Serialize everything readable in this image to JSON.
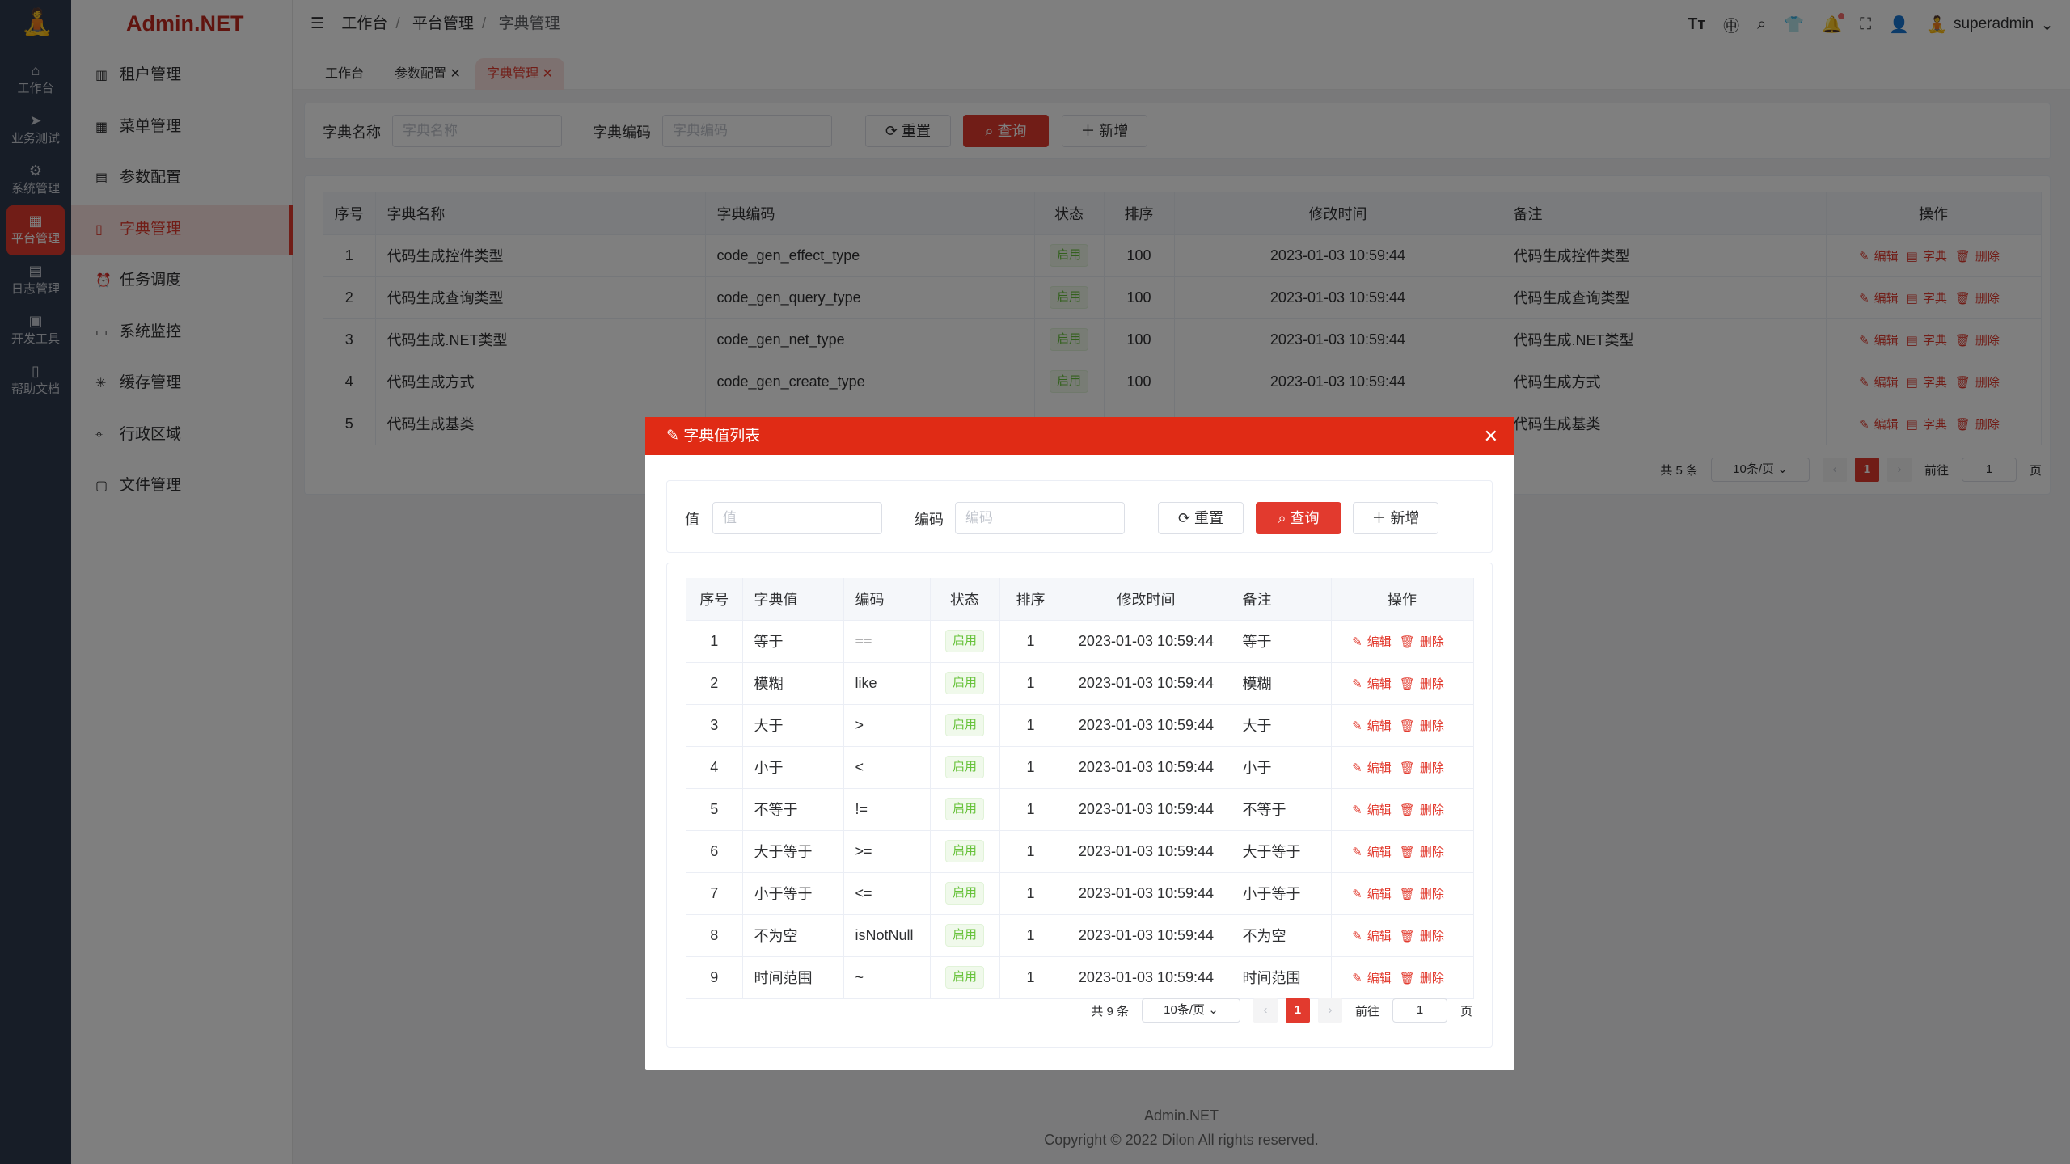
{
  "rail": {
    "items": [
      {
        "label": "工作台",
        "icon": "home-icon"
      },
      {
        "label": "业务测试",
        "icon": "send-icon"
      },
      {
        "label": "系统管理",
        "icon": "gear-icon"
      },
      {
        "label": "平台管理",
        "icon": "grid-icon",
        "active": true
      },
      {
        "label": "日志管理",
        "icon": "document-icon"
      },
      {
        "label": "开发工具",
        "icon": "cpu-icon"
      },
      {
        "label": "帮助文档",
        "icon": "book-icon"
      }
    ]
  },
  "brand": "Admin.NET",
  "menu": {
    "items": [
      {
        "label": "租户管理",
        "icon": "building-icon"
      },
      {
        "label": "菜单管理",
        "icon": "grid-icon"
      },
      {
        "label": "参数配置",
        "icon": "document-icon"
      },
      {
        "label": "字典管理",
        "icon": "book-icon",
        "active": true
      },
      {
        "label": "任务调度",
        "icon": "alarm-clock-icon"
      },
      {
        "label": "系统监控",
        "icon": "monitor-icon"
      },
      {
        "label": "缓存管理",
        "icon": "loading-icon"
      },
      {
        "label": "行政区域",
        "icon": "location-icon"
      },
      {
        "label": "文件管理",
        "icon": "file-icon"
      }
    ]
  },
  "breadcrumb": [
    "工作台",
    "平台管理",
    "字典管理"
  ],
  "user": {
    "name": "superadmin"
  },
  "tabs": [
    {
      "label": "工作台"
    },
    {
      "label": "参数配置",
      "closable": true
    },
    {
      "label": "字典管理",
      "closable": true,
      "active": true
    }
  ],
  "search": {
    "name_label": "字典名称",
    "name_placeholder": "字典名称",
    "code_label": "字典编码",
    "code_placeholder": "字典编码",
    "reset": "重置",
    "query": "查询",
    "add": "新增"
  },
  "table": {
    "headers": [
      "序号",
      "字典名称",
      "字典编码",
      "状态",
      "排序",
      "修改时间",
      "备注",
      "操作"
    ],
    "rows": [
      [
        "1",
        "代码生成控件类型",
        "code_gen_effect_type",
        "启用",
        "100",
        "2023-01-03 10:59:44",
        "代码生成控件类型"
      ],
      [
        "2",
        "代码生成查询类型",
        "code_gen_query_type",
        "启用",
        "100",
        "2023-01-03 10:59:44",
        "代码生成查询类型"
      ],
      [
        "3",
        "代码生成.NET类型",
        "code_gen_net_type",
        "启用",
        "100",
        "2023-01-03 10:59:44",
        "代码生成.NET类型"
      ],
      [
        "4",
        "代码生成方式",
        "code_gen_create_type",
        "启用",
        "100",
        "2023-01-03 10:59:44",
        "代码生成方式"
      ],
      [
        "5",
        "代码生成基类",
        "",
        "",
        "",
        "",
        "代码生成基类"
      ]
    ],
    "actions": [
      "编辑",
      "字典",
      "删除"
    ],
    "pager": {
      "total": "共 5 条",
      "size": "10条/页",
      "page": "1",
      "goto": "前往",
      "goto_value": "1",
      "suffix": "页"
    }
  },
  "dialog": {
    "title": "字典值列表",
    "value_label": "值",
    "value_placeholder": "值",
    "code_label": "编码",
    "code_placeholder": "编码",
    "reset": "重置",
    "query": "查询",
    "add": "新增",
    "headers": [
      "序号",
      "字典值",
      "编码",
      "状态",
      "排序",
      "修改时间",
      "备注",
      "操作"
    ],
    "rows": [
      [
        "1",
        "等于",
        "==",
        "启用",
        "1",
        "2023-01-03 10:59:44",
        "等于"
      ],
      [
        "2",
        "模糊",
        "like",
        "启用",
        "1",
        "2023-01-03 10:59:44",
        "模糊"
      ],
      [
        "3",
        "大于",
        ">",
        "启用",
        "1",
        "2023-01-03 10:59:44",
        "大于"
      ],
      [
        "4",
        "小于",
        "<",
        "启用",
        "1",
        "2023-01-03 10:59:44",
        "小于"
      ],
      [
        "5",
        "不等于",
        "!=",
        "启用",
        "1",
        "2023-01-03 10:59:44",
        "不等于"
      ],
      [
        "6",
        "大于等于",
        ">=",
        "启用",
        "1",
        "2023-01-03 10:59:44",
        "大于等于"
      ],
      [
        "7",
        "小于等于",
        "<=",
        "启用",
        "1",
        "2023-01-03 10:59:44",
        "小于等于"
      ],
      [
        "8",
        "不为空",
        "isNotNull",
        "启用",
        "1",
        "2023-01-03 10:59:44",
        "不为空"
      ],
      [
        "9",
        "时间范围",
        "~",
        "启用",
        "1",
        "2023-01-03 10:59:44",
        "时间范围"
      ]
    ],
    "actions": [
      "编辑",
      "删除"
    ],
    "pager": {
      "total": "共 9 条",
      "size": "10条/页",
      "page": "1",
      "goto": "前往",
      "goto_value": "1",
      "suffix": "页"
    }
  },
  "footer": {
    "line1": "Admin.NET",
    "line2": "Copyright © 2022 Dilon All rights reserved."
  },
  "colors": {
    "accent": "#e23a2e",
    "dialog_header": "#e02b15",
    "tag_green": "#67c23a"
  }
}
